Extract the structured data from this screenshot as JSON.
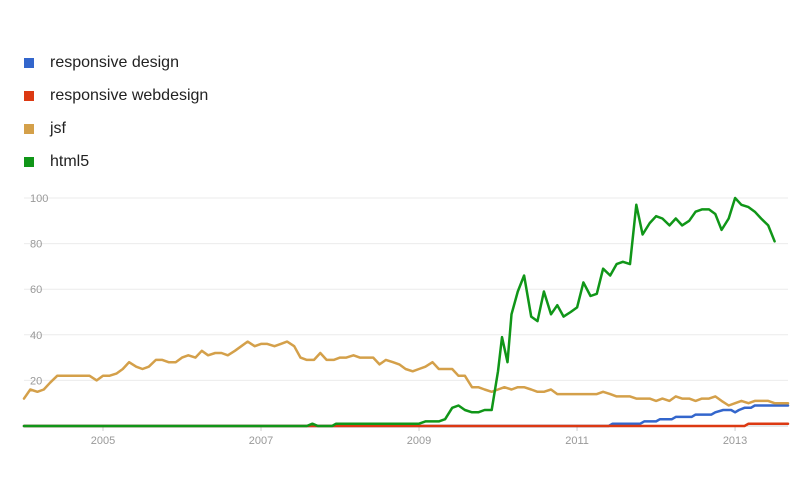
{
  "chart_data": {
    "type": "line",
    "ylim": [
      0,
      100
    ],
    "xlim": [
      2004.0,
      2013.67
    ],
    "grid": true,
    "legend_position": "top-left",
    "yticks": [
      {
        "value": 100,
        "label": "100"
      },
      {
        "value": 80,
        "label": "80"
      },
      {
        "value": 60,
        "label": "60"
      },
      {
        "value": 40,
        "label": "40"
      },
      {
        "value": 20,
        "label": "20"
      }
    ],
    "xticks": [
      {
        "value": 2005,
        "label": "2005"
      },
      {
        "value": 2007,
        "label": "2007"
      },
      {
        "value": 2009,
        "label": "2009"
      },
      {
        "value": 2011,
        "label": "2011"
      },
      {
        "value": 2013,
        "label": "2013"
      }
    ],
    "series": [
      {
        "name": "responsive design",
        "color": "#3366cc",
        "points": [
          [
            2004.0,
            0
          ],
          [
            2011.4,
            0
          ],
          [
            2011.45,
            1
          ],
          [
            2011.8,
            1
          ],
          [
            2011.85,
            2
          ],
          [
            2012.0,
            2
          ],
          [
            2012.05,
            3
          ],
          [
            2012.2,
            3
          ],
          [
            2012.25,
            4
          ],
          [
            2012.45,
            4
          ],
          [
            2012.5,
            5
          ],
          [
            2012.7,
            5
          ],
          [
            2012.75,
            6
          ],
          [
            2012.85,
            7
          ],
          [
            2012.95,
            7
          ],
          [
            2013.0,
            6
          ],
          [
            2013.05,
            7
          ],
          [
            2013.12,
            8
          ],
          [
            2013.2,
            8
          ],
          [
            2013.25,
            9
          ],
          [
            2013.67,
            9
          ]
        ]
      },
      {
        "name": "responsive webdesign",
        "color": "#dc3912",
        "points": [
          [
            2004.0,
            0
          ],
          [
            2013.12,
            0
          ],
          [
            2013.17,
            1
          ],
          [
            2013.67,
            1
          ]
        ]
      },
      {
        "name": "jsf",
        "color": "#d4a04a",
        "points": [
          [
            2004.0,
            12
          ],
          [
            2004.08,
            16
          ],
          [
            2004.17,
            15
          ],
          [
            2004.25,
            16
          ],
          [
            2004.33,
            19
          ],
          [
            2004.42,
            22
          ],
          [
            2004.5,
            22
          ],
          [
            2004.67,
            22
          ],
          [
            2004.83,
            22
          ],
          [
            2004.92,
            20
          ],
          [
            2005.0,
            22
          ],
          [
            2005.08,
            22
          ],
          [
            2005.17,
            23
          ],
          [
            2005.25,
            25
          ],
          [
            2005.33,
            28
          ],
          [
            2005.42,
            26
          ],
          [
            2005.5,
            25
          ],
          [
            2005.58,
            26
          ],
          [
            2005.67,
            29
          ],
          [
            2005.75,
            29
          ],
          [
            2005.83,
            28
          ],
          [
            2005.92,
            28
          ],
          [
            2006.0,
            30
          ],
          [
            2006.08,
            31
          ],
          [
            2006.17,
            30
          ],
          [
            2006.25,
            33
          ],
          [
            2006.33,
            31
          ],
          [
            2006.42,
            32
          ],
          [
            2006.5,
            32
          ],
          [
            2006.58,
            31
          ],
          [
            2006.67,
            33
          ],
          [
            2006.75,
            35
          ],
          [
            2006.83,
            37
          ],
          [
            2006.92,
            35
          ],
          [
            2007.0,
            36
          ],
          [
            2007.08,
            36
          ],
          [
            2007.17,
            35
          ],
          [
            2007.25,
            36
          ],
          [
            2007.33,
            37
          ],
          [
            2007.42,
            35
          ],
          [
            2007.5,
            30
          ],
          [
            2007.58,
            29
          ],
          [
            2007.67,
            29
          ],
          [
            2007.75,
            32
          ],
          [
            2007.83,
            29
          ],
          [
            2007.92,
            29
          ],
          [
            2008.0,
            30
          ],
          [
            2008.08,
            30
          ],
          [
            2008.17,
            31
          ],
          [
            2008.25,
            30
          ],
          [
            2008.33,
            30
          ],
          [
            2008.42,
            30
          ],
          [
            2008.5,
            27
          ],
          [
            2008.58,
            29
          ],
          [
            2008.67,
            28
          ],
          [
            2008.75,
            27
          ],
          [
            2008.83,
            25
          ],
          [
            2008.92,
            24
          ],
          [
            2009.0,
            25
          ],
          [
            2009.08,
            26
          ],
          [
            2009.17,
            28
          ],
          [
            2009.25,
            25
          ],
          [
            2009.33,
            25
          ],
          [
            2009.42,
            25
          ],
          [
            2009.5,
            22
          ],
          [
            2009.58,
            22
          ],
          [
            2009.67,
            17
          ],
          [
            2009.75,
            17
          ],
          [
            2009.83,
            16
          ],
          [
            2009.92,
            15
          ],
          [
            2010.0,
            16
          ],
          [
            2010.08,
            17
          ],
          [
            2010.17,
            16
          ],
          [
            2010.25,
            17
          ],
          [
            2010.33,
            17
          ],
          [
            2010.42,
            16
          ],
          [
            2010.5,
            15
          ],
          [
            2010.58,
            15
          ],
          [
            2010.67,
            16
          ],
          [
            2010.75,
            14
          ],
          [
            2010.83,
            14
          ],
          [
            2010.92,
            14
          ],
          [
            2011.0,
            14
          ],
          [
            2011.08,
            14
          ],
          [
            2011.17,
            14
          ],
          [
            2011.25,
            14
          ],
          [
            2011.33,
            15
          ],
          [
            2011.42,
            14
          ],
          [
            2011.5,
            13
          ],
          [
            2011.58,
            13
          ],
          [
            2011.67,
            13
          ],
          [
            2011.75,
            12
          ],
          [
            2011.83,
            12
          ],
          [
            2011.92,
            12
          ],
          [
            2012.0,
            11
          ],
          [
            2012.08,
            12
          ],
          [
            2012.17,
            11
          ],
          [
            2012.25,
            13
          ],
          [
            2012.33,
            12
          ],
          [
            2012.42,
            12
          ],
          [
            2012.5,
            11
          ],
          [
            2012.58,
            12
          ],
          [
            2012.67,
            12
          ],
          [
            2012.75,
            13
          ],
          [
            2012.83,
            11
          ],
          [
            2012.92,
            9
          ],
          [
            2013.0,
            10
          ],
          [
            2013.08,
            11
          ],
          [
            2013.17,
            10
          ],
          [
            2013.25,
            11
          ],
          [
            2013.33,
            11
          ],
          [
            2013.42,
            11
          ],
          [
            2013.5,
            10
          ],
          [
            2013.58,
            10
          ],
          [
            2013.67,
            10
          ]
        ]
      },
      {
        "name": "html5",
        "color": "#109618",
        "points": [
          [
            2004.0,
            0
          ],
          [
            2007.58,
            0
          ],
          [
            2007.65,
            1
          ],
          [
            2007.72,
            0
          ],
          [
            2007.9,
            0
          ],
          [
            2007.95,
            1
          ],
          [
            2009.0,
            1
          ],
          [
            2009.08,
            2
          ],
          [
            2009.25,
            2
          ],
          [
            2009.33,
            3
          ],
          [
            2009.42,
            8
          ],
          [
            2009.5,
            9
          ],
          [
            2009.58,
            7
          ],
          [
            2009.67,
            6
          ],
          [
            2009.75,
            6
          ],
          [
            2009.83,
            7
          ],
          [
            2009.92,
            7
          ],
          [
            2010.0,
            24
          ],
          [
            2010.05,
            39
          ],
          [
            2010.12,
            28
          ],
          [
            2010.17,
            49
          ],
          [
            2010.25,
            59
          ],
          [
            2010.33,
            66
          ],
          [
            2010.42,
            48
          ],
          [
            2010.5,
            46
          ],
          [
            2010.58,
            59
          ],
          [
            2010.67,
            49
          ],
          [
            2010.75,
            53
          ],
          [
            2010.83,
            48
          ],
          [
            2010.92,
            50
          ],
          [
            2011.0,
            52
          ],
          [
            2011.08,
            63
          ],
          [
            2011.17,
            57
          ],
          [
            2011.25,
            58
          ],
          [
            2011.33,
            69
          ],
          [
            2011.42,
            66
          ],
          [
            2011.5,
            71
          ],
          [
            2011.58,
            72
          ],
          [
            2011.67,
            71
          ],
          [
            2011.75,
            97
          ],
          [
            2011.83,
            84
          ],
          [
            2011.92,
            89
          ],
          [
            2012.0,
            92
          ],
          [
            2012.08,
            91
          ],
          [
            2012.17,
            88
          ],
          [
            2012.25,
            91
          ],
          [
            2012.33,
            88
          ],
          [
            2012.42,
            90
          ],
          [
            2012.5,
            94
          ],
          [
            2012.58,
            95
          ],
          [
            2012.67,
            95
          ],
          [
            2012.75,
            93
          ],
          [
            2012.83,
            86
          ],
          [
            2012.92,
            91
          ],
          [
            2013.0,
            100
          ],
          [
            2013.08,
            97
          ],
          [
            2013.17,
            96
          ],
          [
            2013.25,
            94
          ],
          [
            2013.33,
            91
          ],
          [
            2013.42,
            88
          ],
          [
            2013.5,
            81
          ]
        ]
      }
    ]
  }
}
